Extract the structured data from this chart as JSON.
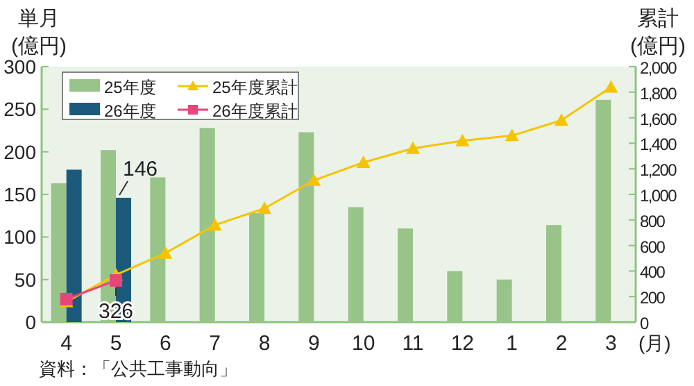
{
  "chart_data": {
    "type": "bar",
    "categories": [
      "4",
      "5",
      "6",
      "7",
      "8",
      "9",
      "10",
      "11",
      "12",
      "1",
      "2",
      "3"
    ],
    "xlabel": "(月)",
    "ylabel": "単月\n(億円)",
    "y2label": "累計\n(億円)",
    "ylim": [
      0,
      300
    ],
    "yticks": [
      0,
      50,
      100,
      150,
      200,
      250,
      300
    ],
    "y2lim": [
      0,
      2000
    ],
    "y2ticks": [
      0,
      200,
      400,
      600,
      800,
      {
        "value": 1000,
        "label": "1,000"
      },
      {
        "value": 1200,
        "label": "1,200"
      },
      {
        "value": 1400,
        "label": "1,400"
      },
      {
        "value": 1600,
        "label": "1,600"
      },
      {
        "value": 1800,
        "label": "1,800"
      },
      {
        "value": 2000,
        "label": "2,000"
      }
    ],
    "series": [
      {
        "name": "25年度",
        "color": "#98c48a",
        "values": [
          163,
          202,
          170,
          228,
          128,
          223,
          135,
          110,
          60,
          50,
          114,
          261
        ]
      },
      {
        "name": "26年度",
        "color": "#1c5a7c",
        "values": [
          179,
          146,
          null,
          null,
          null,
          null,
          null,
          null,
          null,
          null,
          null,
          null
        ],
        "value_labels": [
          null,
          "146",
          null,
          null,
          null,
          null,
          null,
          null,
          null,
          null,
          null,
          null
        ]
      },
      {
        "name": "25年度累計",
        "type": "line",
        "axis": "y2",
        "color": "#f5c400",
        "marker": "triangle",
        "values": [
          160,
          370,
          540,
          760,
          890,
          1110,
          1250,
          1360,
          1420,
          1460,
          1580,
          1840
        ]
      },
      {
        "name": "26年度累計",
        "type": "line",
        "axis": "y2",
        "color": "#e8457a",
        "marker": "square",
        "values": [
          180,
          326,
          null,
          null,
          null,
          null,
          null,
          null,
          null,
          null,
          null,
          null
        ],
        "value_labels": [
          null,
          "326",
          null,
          null,
          null,
          null,
          null,
          null,
          null,
          null,
          null,
          null
        ]
      }
    ],
    "legend": "top left",
    "grid": false,
    "annotations": [
      "資料：「公共工事動向」"
    ]
  }
}
